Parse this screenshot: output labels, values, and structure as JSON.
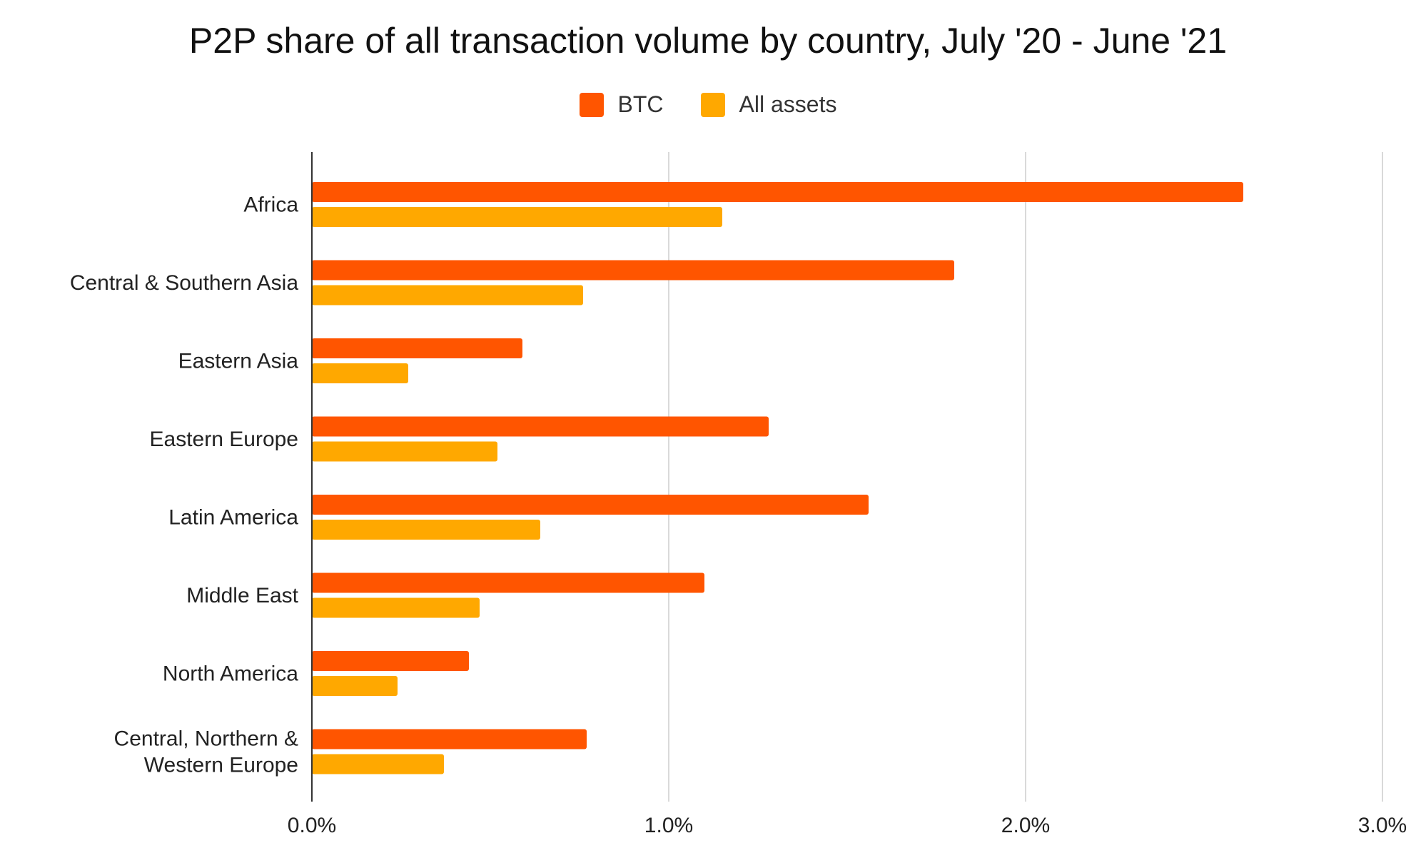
{
  "chart_data": {
    "type": "bar",
    "orientation": "horizontal",
    "title": "P2P share of all transaction volume by country, July '20 - June '21",
    "categories": [
      [
        "Africa"
      ],
      [
        "Central & Southern Asia"
      ],
      [
        "Eastern Asia"
      ],
      [
        "Eastern Europe"
      ],
      [
        "Latin America"
      ],
      [
        "Middle East"
      ],
      [
        "North America"
      ],
      [
        "Central, Northern &",
        "Western Europe"
      ]
    ],
    "series": [
      {
        "name": "BTC",
        "color": "#ff5500",
        "values": [
          2.61,
          1.8,
          0.59,
          1.28,
          1.56,
          1.1,
          0.44,
          0.77
        ]
      },
      {
        "name": "All assets",
        "color": "#ffa800",
        "values": [
          1.15,
          0.76,
          0.27,
          0.52,
          0.64,
          0.47,
          0.24,
          0.37
        ]
      }
    ],
    "xlim": [
      0,
      3
    ],
    "x_ticks": [
      "0.0%",
      "1.0%",
      "2.0%",
      "3.0%"
    ],
    "x_tick_values": [
      0,
      1,
      2,
      3
    ],
    "grid": true,
    "legend_position": "top-center"
  }
}
